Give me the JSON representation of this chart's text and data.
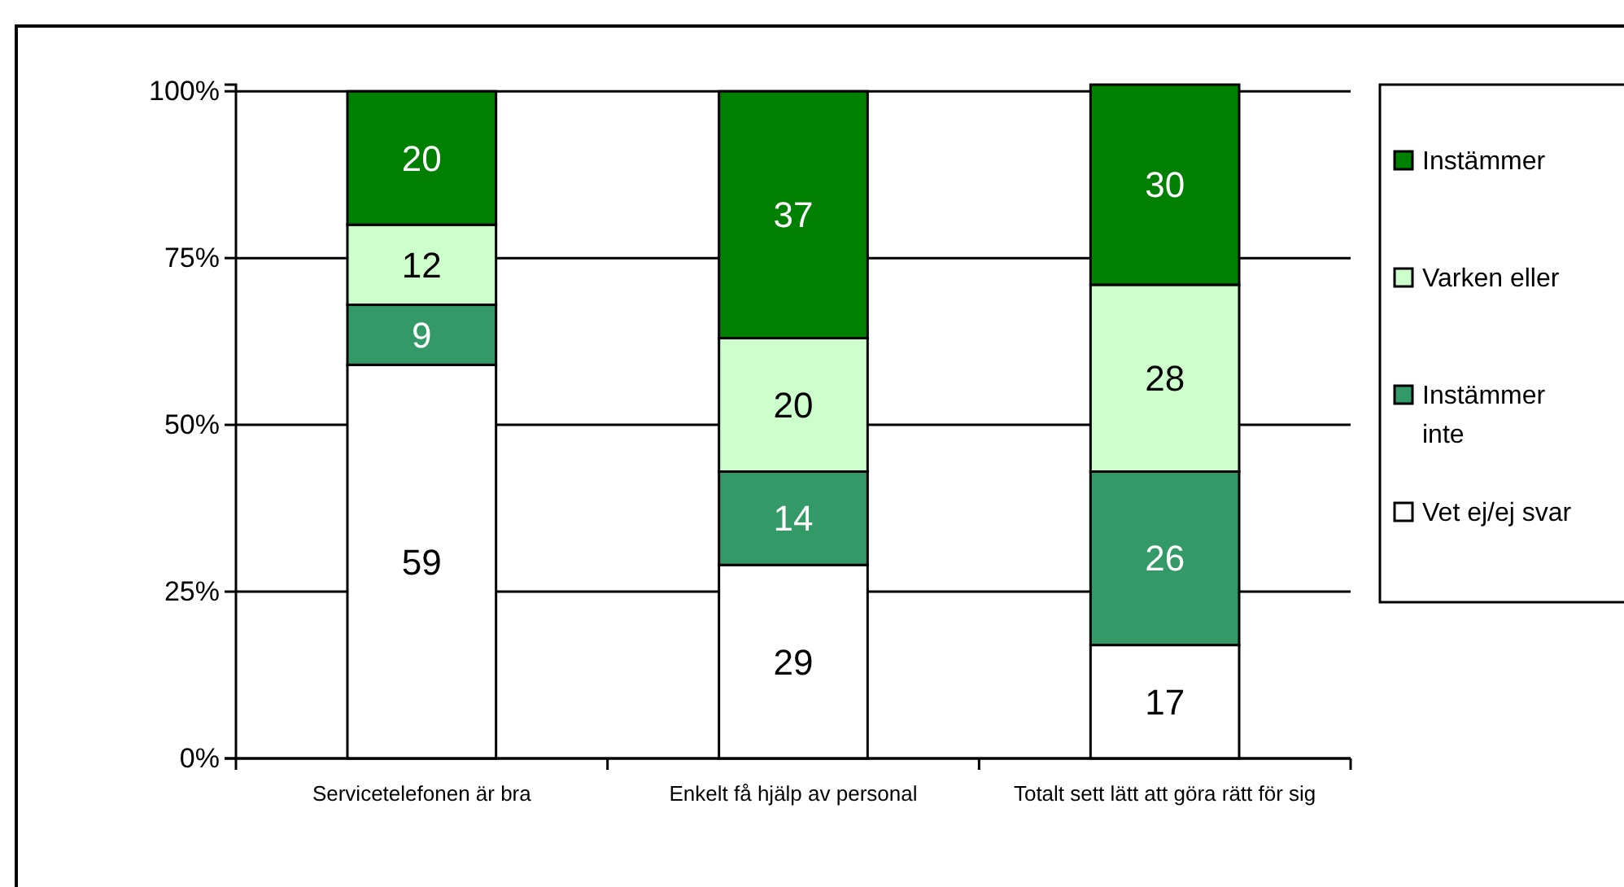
{
  "chart_data": {
    "type": "bar",
    "stacked": true,
    "categories": [
      "Servicetelefonen är bra",
      "Enkelt få hjälp av personal",
      "Totalt sett lätt att göra rätt för sig"
    ],
    "series": [
      {
        "name": "Vet ej/ej svar",
        "color": "#ffffff",
        "values": [
          59,
          29,
          17
        ]
      },
      {
        "name": "Instämmer inte",
        "color": "#339966",
        "values": [
          9,
          14,
          26
        ]
      },
      {
        "name": "Varken eller",
        "color": "#ccffcc",
        "values": [
          12,
          20,
          28
        ]
      },
      {
        "name": "Instämmer",
        "color": "#008000",
        "values": [
          20,
          37,
          30
        ]
      }
    ],
    "ylim": [
      0,
      101
    ],
    "yticks": [
      {
        "value": 0,
        "label": "0%"
      },
      {
        "value": 25,
        "label": "25%"
      },
      {
        "value": 50,
        "label": "50%"
      },
      {
        "value": 75,
        "label": "75%"
      },
      {
        "value": 100,
        "label": "100%"
      }
    ],
    "grid": "y",
    "legend": "right",
    "data_labels": true
  }
}
